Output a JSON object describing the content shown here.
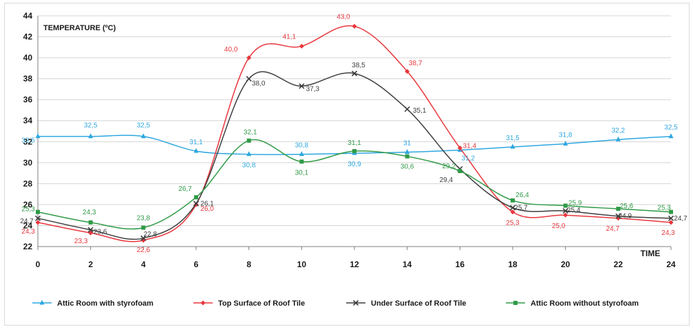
{
  "chart_data": {
    "type": "line",
    "title": "TEMPERATURE (ºC)",
    "xlabel": "TIME",
    "ylabel": "",
    "x": [
      0,
      2,
      4,
      6,
      8,
      10,
      12,
      14,
      16,
      18,
      20,
      22,
      24
    ],
    "xlim": [
      0,
      24
    ],
    "ylim": [
      22,
      44
    ],
    "xticks": [
      "0",
      "2",
      "4",
      "6",
      "8",
      "10",
      "12",
      "14",
      "16",
      "18",
      "20",
      "22",
      "24"
    ],
    "yticks": [
      "22",
      "24",
      "26",
      "28",
      "30",
      "32",
      "34",
      "36",
      "38",
      "40",
      "42",
      "44"
    ],
    "grid": "horizontal",
    "legend_position": "bottom",
    "series": [
      {
        "name": "Attic Room with styrofoam",
        "color": "#2ea7e0",
        "marker": "triangle",
        "values": [
          32.5,
          32.5,
          32.5,
          31.1,
          30.8,
          30.8,
          30.9,
          31.0,
          31.2,
          31.5,
          31.8,
          32.2,
          32.5
        ],
        "labels": [
          "32,5",
          "32,5",
          "32,5",
          "31,1",
          "30,8",
          "30,8",
          "30,9",
          "31",
          "31,2",
          "31,5",
          "31,8",
          "32,2",
          "32,5"
        ]
      },
      {
        "name": "Top Surface of Roof Tile",
        "color": "#e8363c",
        "marker": "diamond",
        "values": [
          24.3,
          23.3,
          22.6,
          26.0,
          40.0,
          41.1,
          43.0,
          38.7,
          31.4,
          25.3,
          25.0,
          24.7,
          24.3
        ],
        "labels": [
          "24,3",
          "23,3",
          "22,6",
          "26,0",
          "40,0",
          "41,1",
          "43,0",
          "38,7",
          "31,4",
          "25,3",
          "25,0",
          "24,7",
          "24,3"
        ]
      },
      {
        "name": "Under Surface of Roof Tile",
        "color": "#3d3d3d",
        "marker": "star",
        "values": [
          24.7,
          23.6,
          22.8,
          26.1,
          38.0,
          37.3,
          38.5,
          35.1,
          29.4,
          25.7,
          25.4,
          24.9,
          24.7
        ],
        "labels": [
          "24,7",
          "23,6",
          "22,8",
          "26,1",
          "38,0",
          "37,3",
          "38,5",
          "35,1",
          "29,4",
          "25,7",
          "25,4",
          "24,9",
          "24,7"
        ]
      },
      {
        "name": "Attic Room without styrofoam",
        "color": "#2f9a46",
        "marker": "square",
        "values": [
          25.3,
          24.3,
          23.8,
          26.7,
          32.1,
          30.1,
          31.1,
          30.6,
          29.2,
          26.4,
          25.9,
          25.6,
          25.3
        ],
        "labels": [
          "25,3",
          "24,3",
          "23,8",
          "26,7",
          "32,1",
          "30,1",
          "31,1",
          "30,6",
          "29,2",
          "26,4",
          "25,9",
          "25,6",
          "25,3"
        ]
      }
    ]
  }
}
